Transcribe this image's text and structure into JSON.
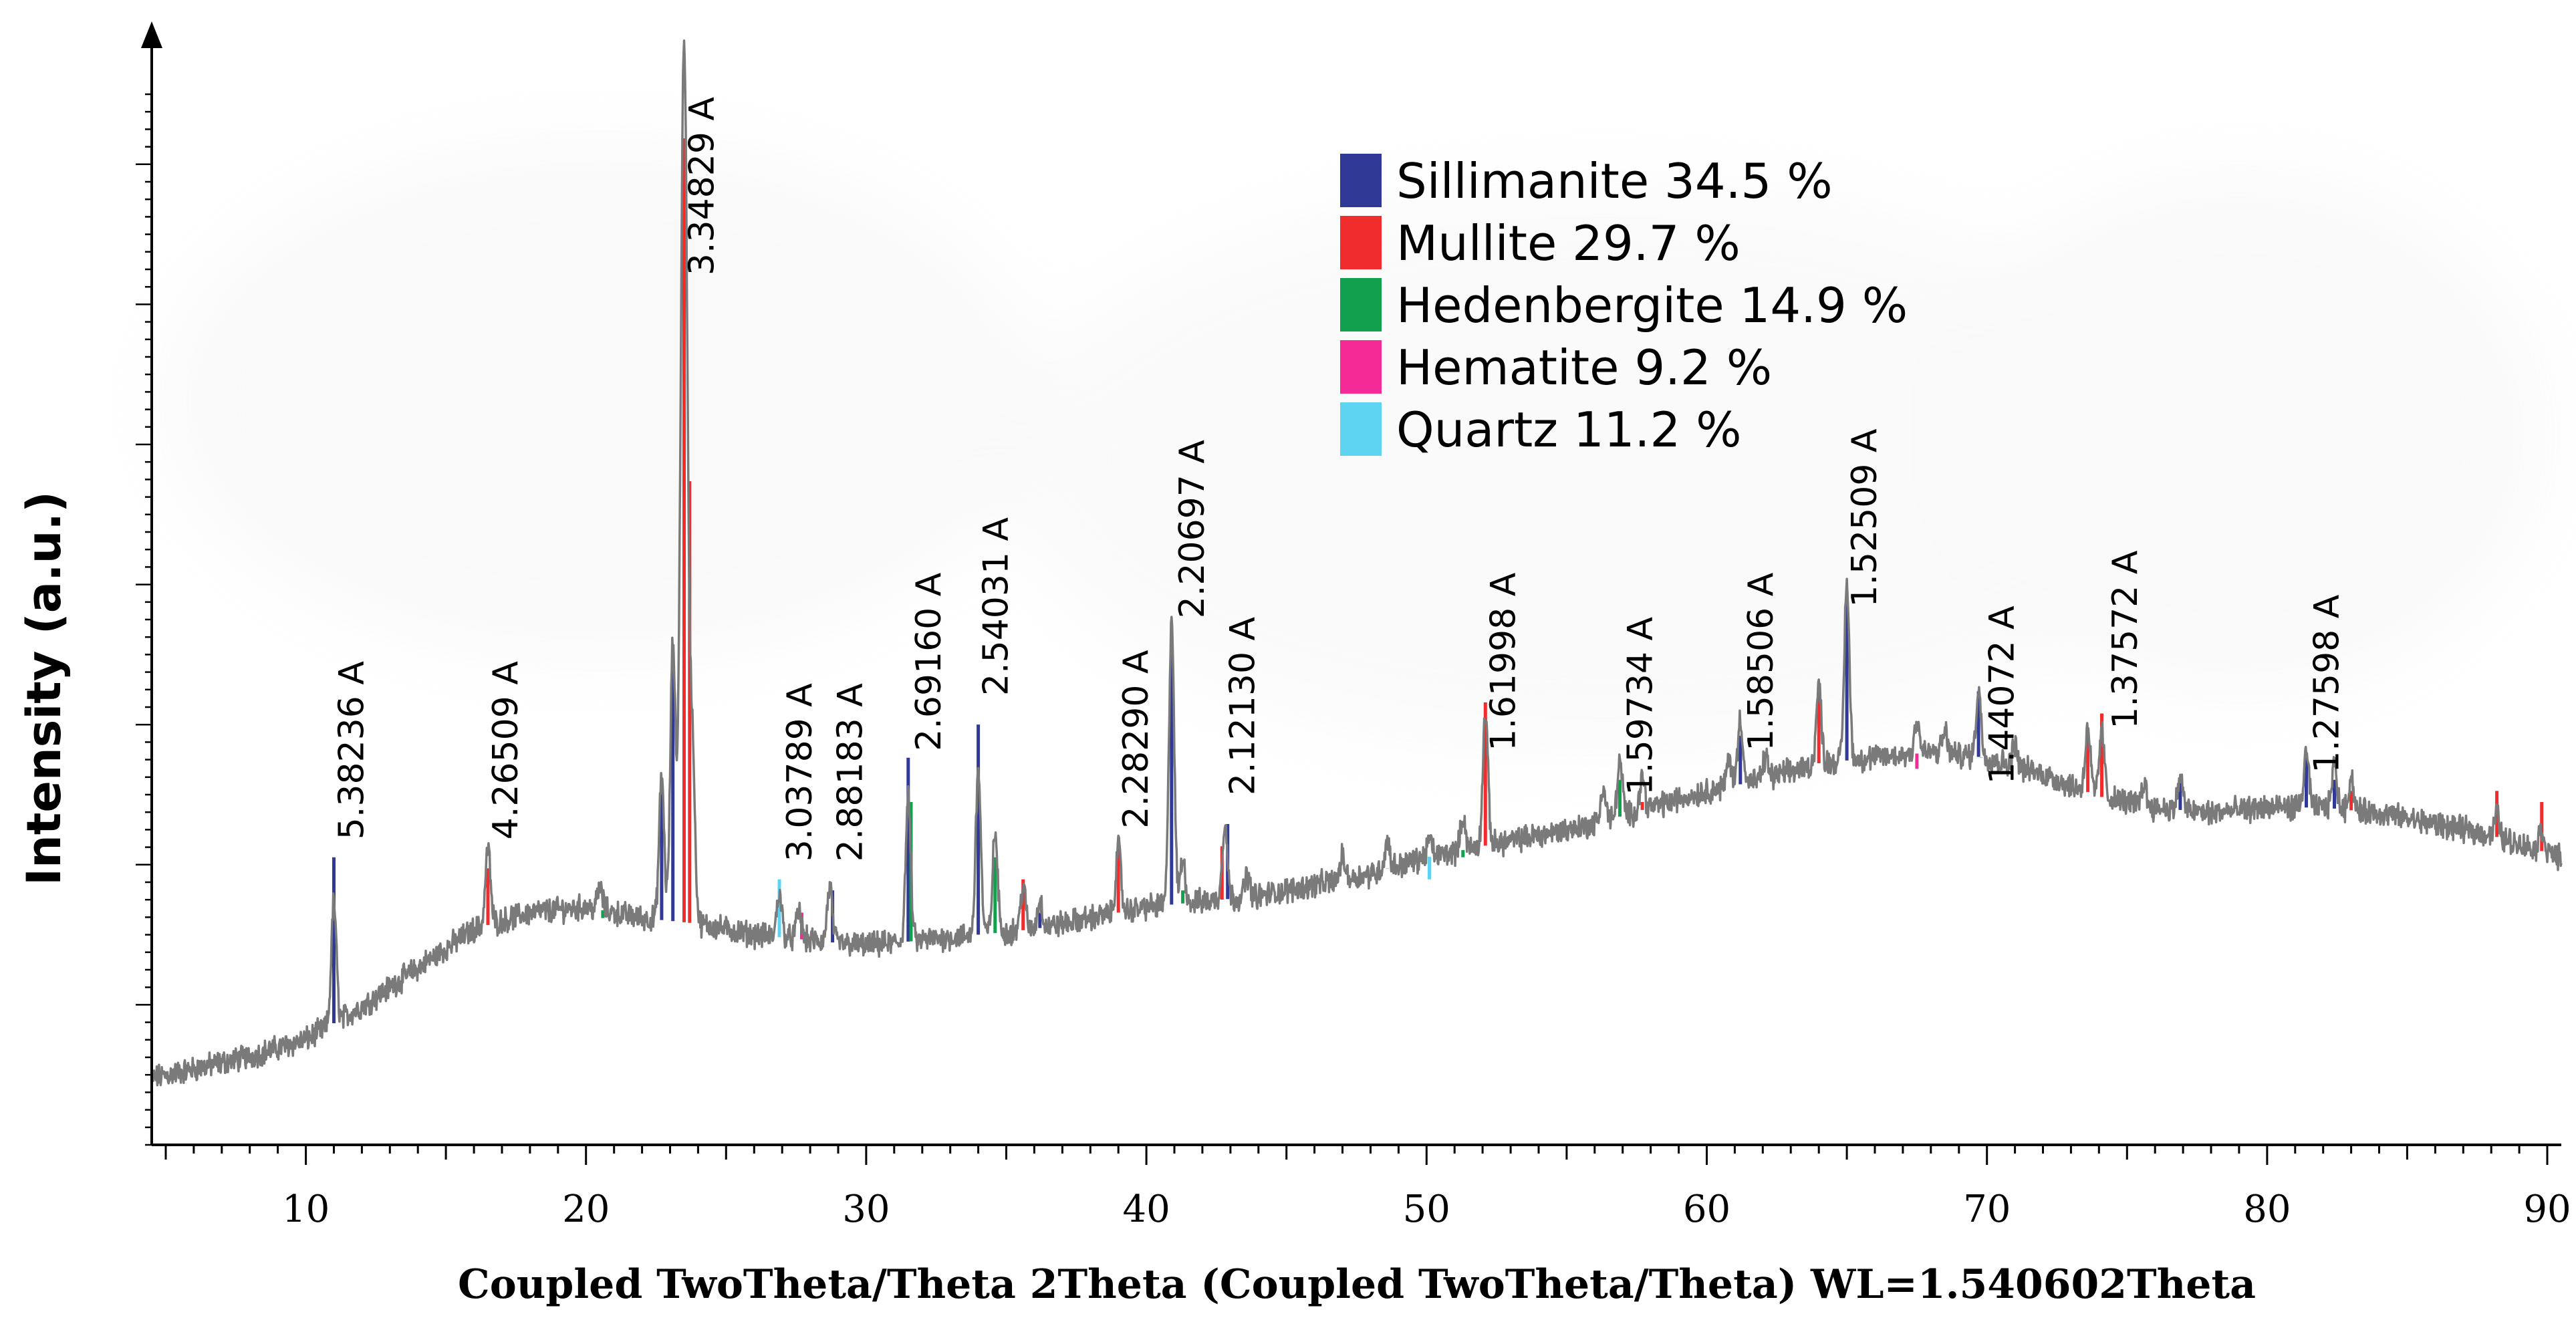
{
  "chart_data": {
    "type": "line",
    "title": "",
    "xlabel": "Coupled TwoTheta/Theta 2Theta (Coupled TwoTheta/Theta) WL=1.540602Theta",
    "ylabel": "Intensity (a.u.)",
    "xlim": [
      4.5,
      90.5
    ],
    "ylim": [
      0,
      100
    ],
    "x_ticks": [
      10,
      20,
      30,
      40,
      50,
      60,
      70,
      80,
      90
    ],
    "x_tick_labels": [
      "10",
      "20",
      "30",
      "40",
      "50",
      "60",
      "70",
      "80",
      "90"
    ],
    "grid": false,
    "legend_position": "top-center",
    "legend": [
      {
        "name": "Sillimanite 34.5 %",
        "color": "#303a96"
      },
      {
        "name": "Mullite 29.7 %",
        "color": "#f02c2c"
      },
      {
        "name": "Hedenbergite 14.9 %",
        "color": "#12a04e"
      },
      {
        "name": "Hematite 9.2 %",
        "color": "#f42a96"
      },
      {
        "name": "Quartz 11.2 %",
        "color": "#5fd4f2"
      }
    ],
    "background": [
      [
        4.5,
        6
      ],
      [
        8,
        8
      ],
      [
        10,
        9.5
      ],
      [
        12,
        12.5
      ],
      [
        14,
        16
      ],
      [
        16,
        19.5
      ],
      [
        18,
        21
      ],
      [
        20,
        21.5
      ],
      [
        22,
        20.5
      ],
      [
        24,
        20
      ],
      [
        26,
        19
      ],
      [
        28,
        18.5
      ],
      [
        30,
        18
      ],
      [
        32,
        18.5
      ],
      [
        34,
        19
      ],
      [
        36,
        19.5
      ],
      [
        38,
        20.5
      ],
      [
        40,
        21.5
      ],
      [
        42,
        22
      ],
      [
        44,
        22.5
      ],
      [
        46,
        23.5
      ],
      [
        48,
        24.5
      ],
      [
        50,
        26
      ],
      [
        52,
        27
      ],
      [
        54,
        28
      ],
      [
        56,
        29
      ],
      [
        58,
        30.5
      ],
      [
        60,
        32
      ],
      [
        62,
        33
      ],
      [
        64,
        34.5
      ],
      [
        66,
        35
      ],
      [
        68,
        35.5
      ],
      [
        70,
        35
      ],
      [
        72,
        33.5
      ],
      [
        74,
        31.5
      ],
      [
        76,
        30.5
      ],
      [
        78,
        30
      ],
      [
        80,
        30.5
      ],
      [
        82,
        30.5
      ],
      [
        84,
        30
      ],
      [
        86,
        29
      ],
      [
        88,
        28
      ],
      [
        90.5,
        26
      ]
    ],
    "peaks": [
      {
        "x": 11.0,
        "h": 11,
        "phase": "Sillimanite"
      },
      {
        "x": 16.5,
        "h": 7,
        "phase": "Mullite"
      },
      {
        "x": 20.5,
        "h": 2,
        "phase": "Hedenbergite"
      },
      {
        "x": 22.7,
        "h": 13,
        "phase": "Sillimanite"
      },
      {
        "x": 23.1,
        "h": 25,
        "phase": "Sillimanite"
      },
      {
        "x": 23.5,
        "h": 80,
        "phase": "Mullite"
      },
      {
        "x": 23.8,
        "h": 15,
        "phase": "Sillimanite"
      },
      {
        "x": 26.9,
        "h": 4,
        "phase": "Quartz"
      },
      {
        "x": 27.6,
        "h": 2.5,
        "phase": "Hematite"
      },
      {
        "x": 28.7,
        "h": 5,
        "phase": "Sillimanite"
      },
      {
        "x": 31.5,
        "h": 13,
        "phase": "Hedenbergite"
      },
      {
        "x": 34.0,
        "h": 15,
        "phase": "Sillimanite"
      },
      {
        "x": 34.6,
        "h": 9,
        "phase": "Hedenbergite"
      },
      {
        "x": 35.6,
        "h": 4,
        "phase": "Mullite"
      },
      {
        "x": 36.2,
        "h": 2.5,
        "phase": "Sillimanite"
      },
      {
        "x": 39.0,
        "h": 6,
        "phase": "Mullite"
      },
      {
        "x": 40.9,
        "h": 26,
        "phase": "Sillimanite"
      },
      {
        "x": 41.3,
        "h": 4,
        "phase": "Hedenbergite"
      },
      {
        "x": 42.8,
        "h": 7,
        "phase": "Sillimanite"
      },
      {
        "x": 43.6,
        "h": 2,
        "phase": "Quartz"
      },
      {
        "x": 47.0,
        "h": 2,
        "phase": "Mullite"
      },
      {
        "x": 48.6,
        "h": 2.5,
        "phase": "Quartz"
      },
      {
        "x": 50.1,
        "h": 1.5,
        "phase": "Quartz"
      },
      {
        "x": 51.3,
        "h": 3,
        "phase": "Hedenbergite"
      },
      {
        "x": 52.1,
        "h": 12,
        "phase": "Mullite"
      },
      {
        "x": 56.3,
        "h": 3,
        "phase": "Sillimanite"
      },
      {
        "x": 56.9,
        "h": 5,
        "phase": "Hedenbergite"
      },
      {
        "x": 57.7,
        "h": 3,
        "phase": "Mullite"
      },
      {
        "x": 60.8,
        "h": 2.5,
        "phase": "Hematite"
      },
      {
        "x": 61.2,
        "h": 6,
        "phase": "Sillimanite"
      },
      {
        "x": 62.1,
        "h": 2,
        "phase": "Sillimanite"
      },
      {
        "x": 64.0,
        "h": 7,
        "phase": "Mullite"
      },
      {
        "x": 65.0,
        "h": 16,
        "phase": "Sillimanite"
      },
      {
        "x": 67.5,
        "h": 3,
        "phase": "Hematite"
      },
      {
        "x": 68.5,
        "h": 2,
        "phase": "Sillimanite"
      },
      {
        "x": 69.7,
        "h": 6,
        "phase": "Sillimanite"
      },
      {
        "x": 71.0,
        "h": 2,
        "phase": "Sillimanite"
      },
      {
        "x": 73.6,
        "h": 6,
        "phase": "Mullite"
      },
      {
        "x": 74.1,
        "h": 6,
        "phase": "Mullite"
      },
      {
        "x": 75.6,
        "h": 2,
        "phase": "Sillimanite"
      },
      {
        "x": 76.9,
        "h": 3,
        "phase": "Sillimanite"
      },
      {
        "x": 81.4,
        "h": 5,
        "phase": "Sillimanite"
      },
      {
        "x": 82.4,
        "h": 4,
        "phase": "Sillimanite"
      },
      {
        "x": 83.0,
        "h": 3,
        "phase": "Mullite"
      },
      {
        "x": 88.2,
        "h": 2,
        "phase": "Mullite"
      },
      {
        "x": 89.8,
        "h": 2,
        "phase": "Mullite"
      }
    ],
    "reference_sticks": [
      {
        "x": 11.0,
        "y": 26,
        "phase": "Sillimanite"
      },
      {
        "x": 16.5,
        "y": 25,
        "phase": "Mullite"
      },
      {
        "x": 20.6,
        "y": 20.5,
        "phase": "Hedenbergite"
      },
      {
        "x": 22.7,
        "y": 33,
        "phase": "Sillimanite"
      },
      {
        "x": 23.1,
        "y": 44,
        "phase": "Sillimanite"
      },
      {
        "x": 23.5,
        "y": 91,
        "phase": "Mullite"
      },
      {
        "x": 23.7,
        "y": 60,
        "phase": "Mullite"
      },
      {
        "x": 26.9,
        "y": 24,
        "phase": "Quartz"
      },
      {
        "x": 27.7,
        "y": 21,
        "phase": "Hematite"
      },
      {
        "x": 28.8,
        "y": 23,
        "phase": "Sillimanite"
      },
      {
        "x": 31.5,
        "y": 35,
        "phase": "Sillimanite"
      },
      {
        "x": 31.6,
        "y": 31,
        "phase": "Hedenbergite"
      },
      {
        "x": 34.0,
        "y": 38,
        "phase": "Sillimanite"
      },
      {
        "x": 34.6,
        "y": 26,
        "phase": "Hedenbergite"
      },
      {
        "x": 35.6,
        "y": 24,
        "phase": "Mullite"
      },
      {
        "x": 36.2,
        "y": 21,
        "phase": "Sillimanite"
      },
      {
        "x": 39.0,
        "y": 27,
        "phase": "Mullite"
      },
      {
        "x": 40.9,
        "y": 45,
        "phase": "Sillimanite"
      },
      {
        "x": 41.3,
        "y": 23,
        "phase": "Hedenbergite"
      },
      {
        "x": 42.7,
        "y": 27,
        "phase": "Mullite"
      },
      {
        "x": 42.9,
        "y": 29,
        "phase": "Sillimanite"
      },
      {
        "x": 47.0,
        "y": 24,
        "phase": "Mullite"
      },
      {
        "x": 48.6,
        "y": 25,
        "phase": "Quartz"
      },
      {
        "x": 50.1,
        "y": 24,
        "phase": "Quartz"
      },
      {
        "x": 51.3,
        "y": 26,
        "phase": "Hedenbergite"
      },
      {
        "x": 52.1,
        "y": 40,
        "phase": "Mullite"
      },
      {
        "x": 56.9,
        "y": 33,
        "phase": "Hedenbergite"
      },
      {
        "x": 57.7,
        "y": 31,
        "phase": "Mullite"
      },
      {
        "x": 61.2,
        "y": 37,
        "phase": "Sillimanite"
      },
      {
        "x": 64.0,
        "y": 41,
        "phase": "Mullite"
      },
      {
        "x": 65.0,
        "y": 50,
        "phase": "Sillimanite"
      },
      {
        "x": 67.5,
        "y": 34,
        "phase": "Hematite"
      },
      {
        "x": 69.7,
        "y": 41,
        "phase": "Sillimanite"
      },
      {
        "x": 69.8,
        "y": 35,
        "phase": "Quartz"
      },
      {
        "x": 73.6,
        "y": 37,
        "phase": "Mullite"
      },
      {
        "x": 74.1,
        "y": 39,
        "phase": "Mullite"
      },
      {
        "x": 76.9,
        "y": 33,
        "phase": "Sillimanite"
      },
      {
        "x": 81.4,
        "y": 35,
        "phase": "Sillimanite"
      },
      {
        "x": 82.4,
        "y": 33,
        "phase": "Sillimanite"
      },
      {
        "x": 83.0,
        "y": 32,
        "phase": "Mullite"
      },
      {
        "x": 88.2,
        "y": 32,
        "phase": "Mullite"
      },
      {
        "x": 89.8,
        "y": 31,
        "phase": "Mullite"
      }
    ],
    "annotations": [
      {
        "text": "5.38236 A",
        "x": 11.0,
        "y": 27
      },
      {
        "text": "4.26509 A",
        "x": 16.5,
        "y": 27
      },
      {
        "text": "3.34829 A",
        "x": 23.5,
        "y": 78
      },
      {
        "text": "3.03789 A",
        "x": 27.0,
        "y": 25
      },
      {
        "text": "2.88183 A",
        "x": 28.8,
        "y": 25
      },
      {
        "text": "2.69160 A",
        "x": 31.6,
        "y": 35
      },
      {
        "text": "2.54031 A",
        "x": 34.0,
        "y": 40
      },
      {
        "text": "2.28290 A",
        "x": 39.0,
        "y": 28
      },
      {
        "text": "2.20697 A",
        "x": 41.0,
        "y": 47
      },
      {
        "text": "2.12130 A",
        "x": 42.8,
        "y": 31
      },
      {
        "text": "1.61998 A",
        "x": 52.1,
        "y": 35
      },
      {
        "text": "1.59734 A",
        "x": 57.0,
        "y": 31
      },
      {
        "text": "1.58506 A",
        "x": 61.3,
        "y": 35
      },
      {
        "text": "1.52509 A",
        "x": 65.0,
        "y": 48
      },
      {
        "text": "1.44072 A",
        "x": 69.9,
        "y": 32
      },
      {
        "text": "1.37572 A",
        "x": 74.3,
        "y": 37
      },
      {
        "text": "1.27598 A",
        "x": 81.5,
        "y": 33
      }
    ]
  }
}
